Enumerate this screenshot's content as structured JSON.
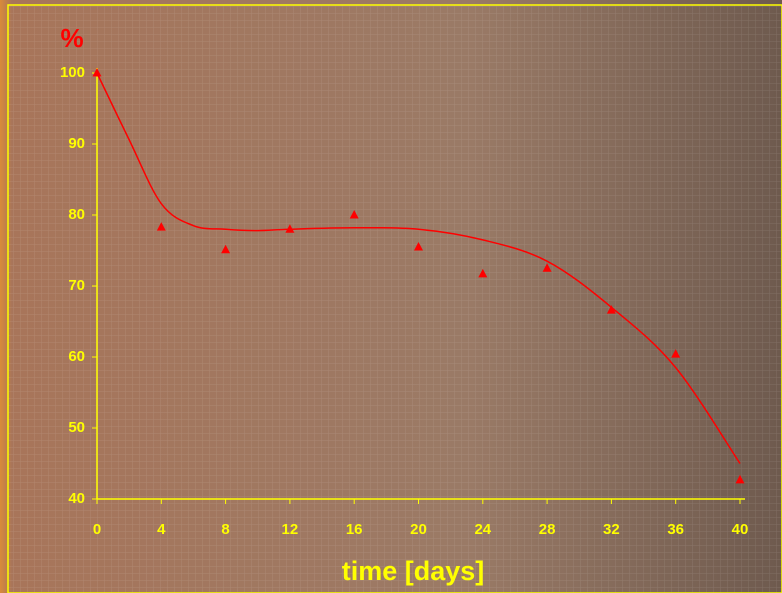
{
  "chart_data": {
    "type": "scatter",
    "y_label": "%",
    "x_label": "time [days]",
    "xlim": [
      0,
      40
    ],
    "xticks": [
      0,
      4,
      8,
      12,
      16,
      20,
      24,
      28,
      32,
      36,
      40
    ],
    "ylim": [
      40,
      100
    ],
    "yticks": [
      40,
      50,
      60,
      70,
      80,
      90,
      100
    ],
    "series": [
      {
        "color": "#ff0000",
        "marker": "triangle",
        "x": [
          0,
          4,
          8,
          12,
          16,
          20,
          24,
          28,
          32,
          36,
          40
        ],
        "values": [
          100,
          78.3,
          75.1,
          78.0,
          80.0,
          75.5,
          71.7,
          72.5,
          66.6,
          60.4,
          42.7
        ]
      },
      {
        "color": "#ff0000",
        "marker": "line",
        "x": [
          0,
          2,
          4,
          6,
          8,
          10,
          12,
          16,
          20,
          24,
          28,
          32,
          36,
          40
        ],
        "values": [
          100,
          90.6,
          81.6,
          78.5,
          78.0,
          77.8,
          78.0,
          78.2,
          78.0,
          76.5,
          73.5,
          67.0,
          58.5,
          45.0
        ]
      }
    ]
  }
}
